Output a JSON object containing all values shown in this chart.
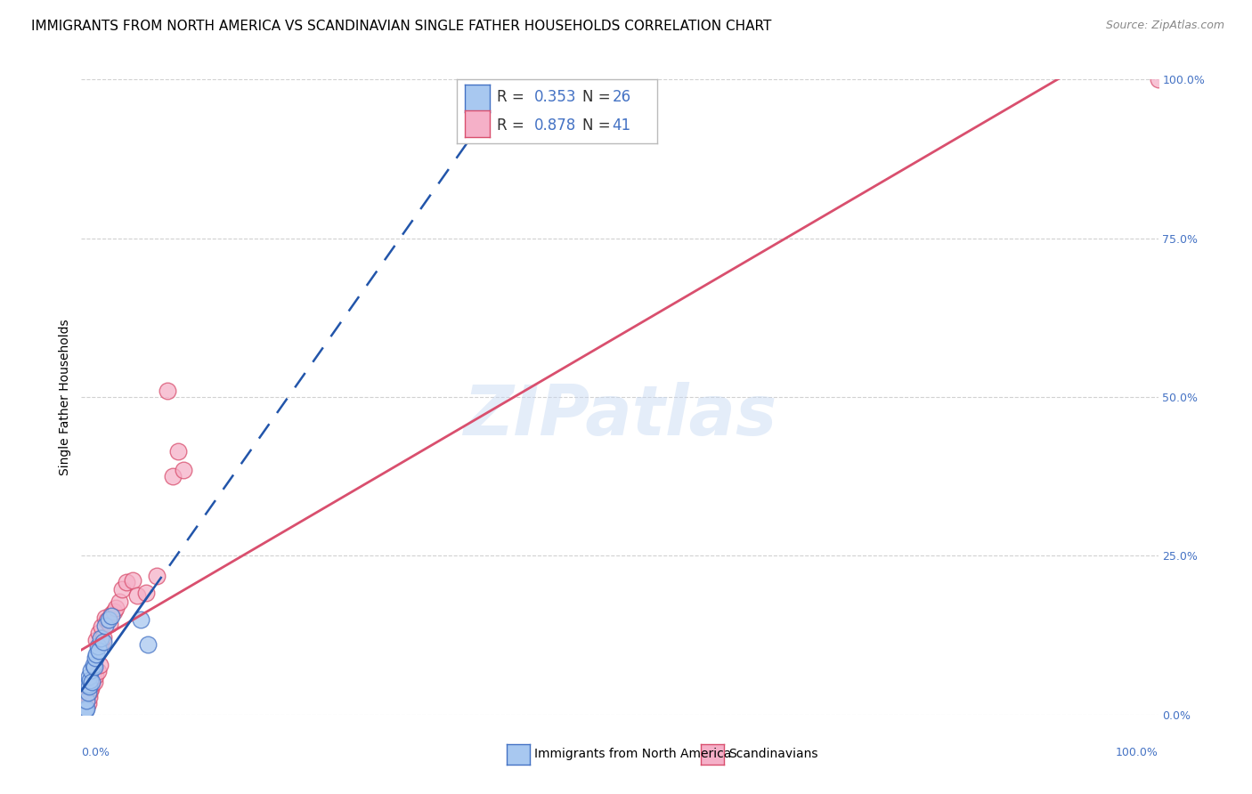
{
  "title": "IMMIGRANTS FROM NORTH AMERICA VS SCANDINAVIAN SINGLE FATHER HOUSEHOLDS CORRELATION CHART",
  "source": "Source: ZipAtlas.com",
  "ylabel": "Single Father Households",
  "watermark": "ZIPatlas",
  "blue_label": "Immigrants from North America",
  "pink_label": "Scandinavians",
  "blue_R": 0.353,
  "blue_N": 26,
  "pink_R": 0.878,
  "pink_N": 41,
  "blue_color": "#a8c8f0",
  "pink_color": "#f5b0c8",
  "blue_edge_color": "#4472c4",
  "pink_edge_color": "#d94f6e",
  "blue_line_color": "#2255aa",
  "pink_line_color": "#d94f6e",
  "right_axis_color": "#4472c4",
  "grid_color": "#cccccc",
  "background_color": "#ffffff",
  "blue_x": [
    0.002,
    0.003,
    0.003,
    0.004,
    0.005,
    0.005,
    0.006,
    0.006,
    0.007,
    0.007,
    0.008,
    0.009,
    0.01,
    0.011,
    0.012,
    0.013,
    0.014,
    0.015,
    0.016,
    0.018,
    0.02,
    0.022,
    0.025,
    0.028,
    0.055,
    0.062
  ],
  "blue_y": [
    0.004,
    0.005,
    0.008,
    0.007,
    0.01,
    0.022,
    0.035,
    0.048,
    0.045,
    0.06,
    0.055,
    0.07,
    0.052,
    0.078,
    0.075,
    0.09,
    0.095,
    0.108,
    0.1,
    0.12,
    0.115,
    0.14,
    0.15,
    0.155,
    0.15,
    0.11
  ],
  "pink_x": [
    0.001,
    0.002,
    0.003,
    0.003,
    0.004,
    0.005,
    0.005,
    0.006,
    0.006,
    0.007,
    0.008,
    0.009,
    0.01,
    0.011,
    0.012,
    0.013,
    0.014,
    0.015,
    0.016,
    0.017,
    0.018,
    0.019,
    0.02,
    0.022,
    0.024,
    0.026,
    0.028,
    0.03,
    0.032,
    0.035,
    0.038,
    0.042,
    0.048,
    0.052,
    0.06,
    0.07,
    0.08,
    0.085,
    0.09,
    0.095,
    1.0
  ],
  "pink_y": [
    0.004,
    0.007,
    0.01,
    0.018,
    0.014,
    0.012,
    0.022,
    0.018,
    0.032,
    0.028,
    0.038,
    0.042,
    0.048,
    0.058,
    0.052,
    0.062,
    0.118,
    0.068,
    0.128,
    0.078,
    0.112,
    0.138,
    0.122,
    0.152,
    0.148,
    0.142,
    0.158,
    0.162,
    0.168,
    0.178,
    0.198,
    0.208,
    0.212,
    0.188,
    0.192,
    0.218,
    0.51,
    0.375,
    0.415,
    0.385,
    1.0
  ],
  "xlim": [
    0.0,
    1.0
  ],
  "ylim": [
    0.0,
    1.0
  ],
  "blue_line_slope": 2.2,
  "blue_line_intercept": 0.02,
  "pink_line_slope": 0.96,
  "pink_line_intercept": -0.01,
  "title_fontsize": 11,
  "tick_fontsize": 9,
  "ylabel_fontsize": 10
}
